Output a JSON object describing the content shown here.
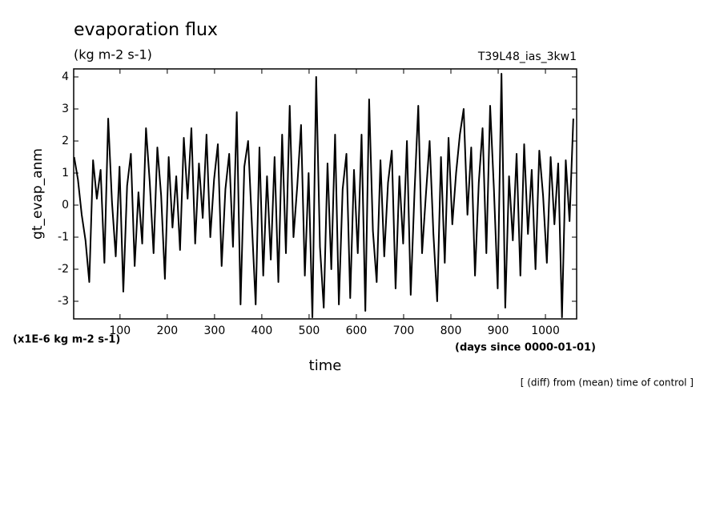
{
  "chart_data": {
    "type": "line",
    "title": "evaporation flux",
    "subtitle": "(kg m-2 s-1)",
    "run_label": "T39L48_ias_3kw1",
    "ylabel": "gt_evap_anm",
    "y_unit_note": "(x1E-6 kg m-2 s-1)",
    "xlabel": "time",
    "x_unit_note": "(days since 0000-01-01)",
    "footnote": "[ (diff) from (mean) time of control ]",
    "color": "#000000",
    "x": [
      3,
      11,
      19,
      27,
      35,
      43,
      51,
      59,
      67,
      75,
      83,
      91,
      99,
      107,
      115,
      123,
      131,
      139,
      147,
      155,
      163,
      171,
      179,
      187,
      195,
      203,
      211,
      219,
      227,
      235,
      243,
      251,
      259,
      267,
      275,
      283,
      291,
      299,
      307,
      315,
      323,
      331,
      339,
      347,
      355,
      363,
      371,
      379,
      387,
      395,
      403,
      411,
      419,
      427,
      435,
      443,
      451,
      459,
      467,
      475,
      483,
      491,
      499,
      507,
      515,
      523,
      531,
      539,
      547,
      555,
      563,
      571,
      579,
      587,
      595,
      603,
      611,
      619,
      627,
      635,
      643,
      651,
      659,
      667,
      675,
      683,
      691,
      699,
      707,
      715,
      723,
      731,
      739,
      747,
      755,
      763,
      771,
      779,
      787,
      795,
      803,
      811,
      819,
      827,
      835,
      843,
      851,
      859,
      867,
      875,
      883,
      891,
      899,
      907,
      915,
      923,
      931,
      939,
      947,
      955,
      963,
      971,
      979,
      987,
      995,
      1003,
      1011,
      1019,
      1027,
      1035,
      1043,
      1051,
      1059
    ],
    "values": [
      1.5,
      0.8,
      -0.3,
      -1.1,
      -2.4,
      1.4,
      0.2,
      1.1,
      -1.8,
      2.7,
      0.1,
      -1.6,
      1.2,
      -2.7,
      0.6,
      1.6,
      -1.9,
      0.4,
      -1.2,
      2.4,
      0.7,
      -1.5,
      1.8,
      0.3,
      -2.3,
      1.5,
      -0.7,
      0.9,
      -1.4,
      2.1,
      0.2,
      2.4,
      -1.2,
      1.3,
      -0.4,
      2.2,
      -1.0,
      0.8,
      1.9,
      -1.9,
      0.5,
      1.6,
      -1.3,
      2.9,
      -3.1,
      1.2,
      2.0,
      -0.6,
      -3.1,
      1.8,
      -2.2,
      0.9,
      -1.7,
      1.5,
      -2.4,
      2.2,
      -1.5,
      3.1,
      -1.0,
      0.6,
      2.5,
      -2.2,
      1.0,
      -3.5,
      4.0,
      -1.3,
      -3.2,
      1.3,
      -2.0,
      2.2,
      -3.1,
      0.5,
      1.6,
      -2.9,
      1.1,
      -1.5,
      2.2,
      -3.3,
      3.3,
      -0.8,
      -2.4,
      1.4,
      -1.6,
      0.7,
      1.7,
      -2.6,
      0.9,
      -1.2,
      2.0,
      -2.8,
      0.4,
      3.1,
      -1.5,
      0.3,
      2.0,
      -0.9,
      -3.0,
      1.5,
      -1.8,
      2.1,
      -0.6,
      1.0,
      2.2,
      3.0,
      -0.3,
      1.8,
      -2.2,
      0.7,
      2.4,
      -1.5,
      3.1,
      0.5,
      -2.6,
      4.1,
      -3.2,
      0.9,
      -1.1,
      1.6,
      -2.2,
      1.9,
      -0.9,
      1.1,
      -2.0,
      1.7,
      0.3,
      -1.8,
      1.5,
      -0.6,
      1.3,
      -3.5,
      1.4,
      -0.5,
      2.7
    ],
    "xlim": [
      2,
      1066
    ],
    "ylim": [
      -3.55,
      4.25
    ],
    "xticks": [
      100,
      200,
      300,
      400,
      500,
      600,
      700,
      800,
      900,
      1000
    ],
    "yticks": [
      -3,
      -2,
      -1,
      0,
      1,
      2,
      3,
      4
    ]
  }
}
